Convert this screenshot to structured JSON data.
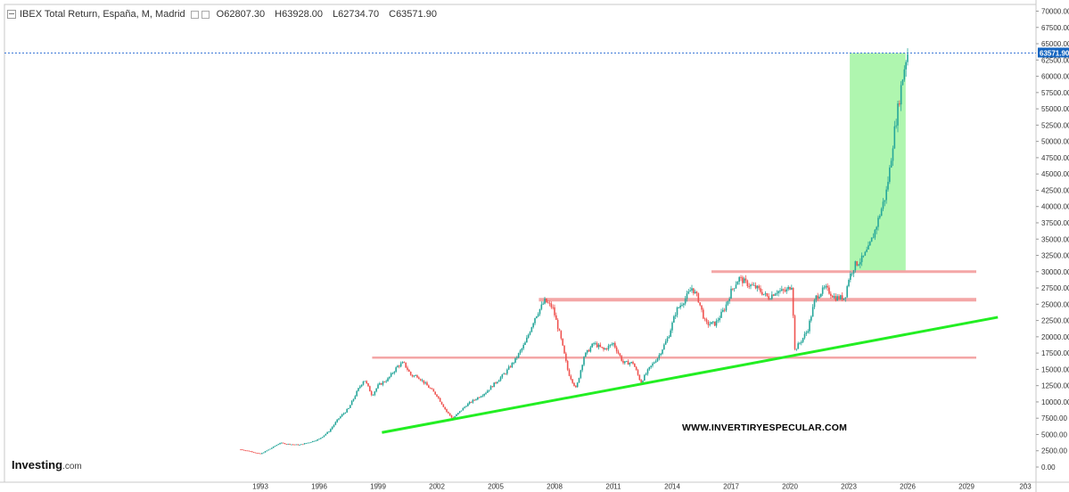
{
  "header": {
    "title": "IBEX Total Return, España, M, Madrid",
    "open": "O62807.30",
    "high": "H63928.00",
    "low": "L62734.70",
    "close": "C63571.90"
  },
  "logo": {
    "brand": "Investing",
    "suffix": ".com"
  },
  "watermark": "WWW.INVERTIRYESPECULAR.COM",
  "colors": {
    "up": "#26a69a",
    "down": "#ef5350",
    "support_line": "#22ee22",
    "resistance": "#f4a6a6",
    "highlight_zone": "#a6f5a6",
    "price_tag": "#1565c0"
  },
  "chart_data": {
    "type": "candlestick",
    "timeframe": "monthly",
    "ylim": [
      0,
      71000
    ],
    "yticks": [
      "70000.00",
      "67500.00",
      "65000.00",
      "62500.00",
      "60000.00",
      "57500.00",
      "55000.00",
      "52500.00",
      "50000.00",
      "47500.00",
      "45000.00",
      "42500.00",
      "40000.00",
      "37500.00",
      "35000.00",
      "32500.00",
      "30000.00",
      "27500.00",
      "25000.00",
      "22500.00",
      "20000.00",
      "17500.00",
      "15000.00",
      "12500.00",
      "10000.00",
      "7500.00",
      "5000.00",
      "2500.00",
      "0.00"
    ],
    "xticks": [
      "1993",
      "1996",
      "1999",
      "2002",
      "2005",
      "2008",
      "2011",
      "2014",
      "2017",
      "2020",
      "2023",
      "2026",
      "2029",
      "203"
    ],
    "current_price_label": "63571.90",
    "series": {
      "x": [
        1992.0,
        1992.5,
        1993.0,
        1993.5,
        1994.0,
        1994.5,
        1995.0,
        1995.5,
        1996.0,
        1996.5,
        1997.0,
        1997.5,
        1998.0,
        1998.3,
        1998.7,
        1999.0,
        1999.5,
        2000.0,
        2000.3,
        2000.7,
        2001.0,
        2001.5,
        2002.0,
        2002.5,
        2002.8,
        2003.0,
        2003.5,
        2004.0,
        2004.5,
        2005.0,
        2005.5,
        2006.0,
        2006.5,
        2007.0,
        2007.5,
        2007.9,
        2008.3,
        2008.7,
        2009.1,
        2009.5,
        2010.0,
        2010.5,
        2011.0,
        2011.5,
        2012.0,
        2012.4,
        2012.8,
        2013.3,
        2013.8,
        2014.2,
        2014.7,
        2015.0,
        2015.3,
        2015.7,
        2016.2,
        2016.7,
        2017.0,
        2017.4,
        2017.9,
        2018.3,
        2018.9,
        2019.3,
        2019.8,
        2020.1,
        2020.25,
        2020.6,
        2020.9,
        2021.3,
        2021.8,
        2022.3,
        2022.8,
        2023.0,
        2023.3,
        2023.7,
        2024.0,
        2024.3,
        2024.6,
        2024.9,
        2025.1,
        2025.3,
        2025.5,
        2025.7,
        2025.9,
        2026.0
      ],
      "y": [
        2700,
        2400,
        2000,
        2800,
        3700,
        3500,
        3400,
        3800,
        4300,
        5500,
        7500,
        9000,
        12000,
        13500,
        11000,
        12500,
        13500,
        15500,
        16000,
        14000,
        14000,
        12500,
        11000,
        8500,
        7500,
        8000,
        9500,
        10500,
        11500,
        13000,
        14500,
        16500,
        19000,
        23000,
        25500,
        24500,
        20000,
        14500,
        12000,
        17000,
        19000,
        18000,
        19000,
        16000,
        16000,
        13000,
        15000,
        17000,
        20000,
        24000,
        26000,
        27500,
        26000,
        22000,
        22000,
        24500,
        27000,
        29000,
        28000,
        27500,
        26000,
        27000,
        27000,
        28000,
        18000,
        19500,
        21000,
        26000,
        27500,
        26000,
        26000,
        29000,
        31000,
        32000,
        33500,
        36000,
        39000,
        42000,
        46000,
        51000,
        55000,
        59000,
        62500,
        63571.9
      ]
    },
    "resistance_levels": [
      16800,
      25700,
      30000
    ],
    "support_trend": {
      "x": [
        1999.2,
        2030.6
      ],
      "y": [
        5300,
        23000
      ]
    },
    "highlight_zone": {
      "x": [
        2023.05,
        2025.9
      ],
      "y": [
        30000,
        63571.9
      ]
    }
  }
}
